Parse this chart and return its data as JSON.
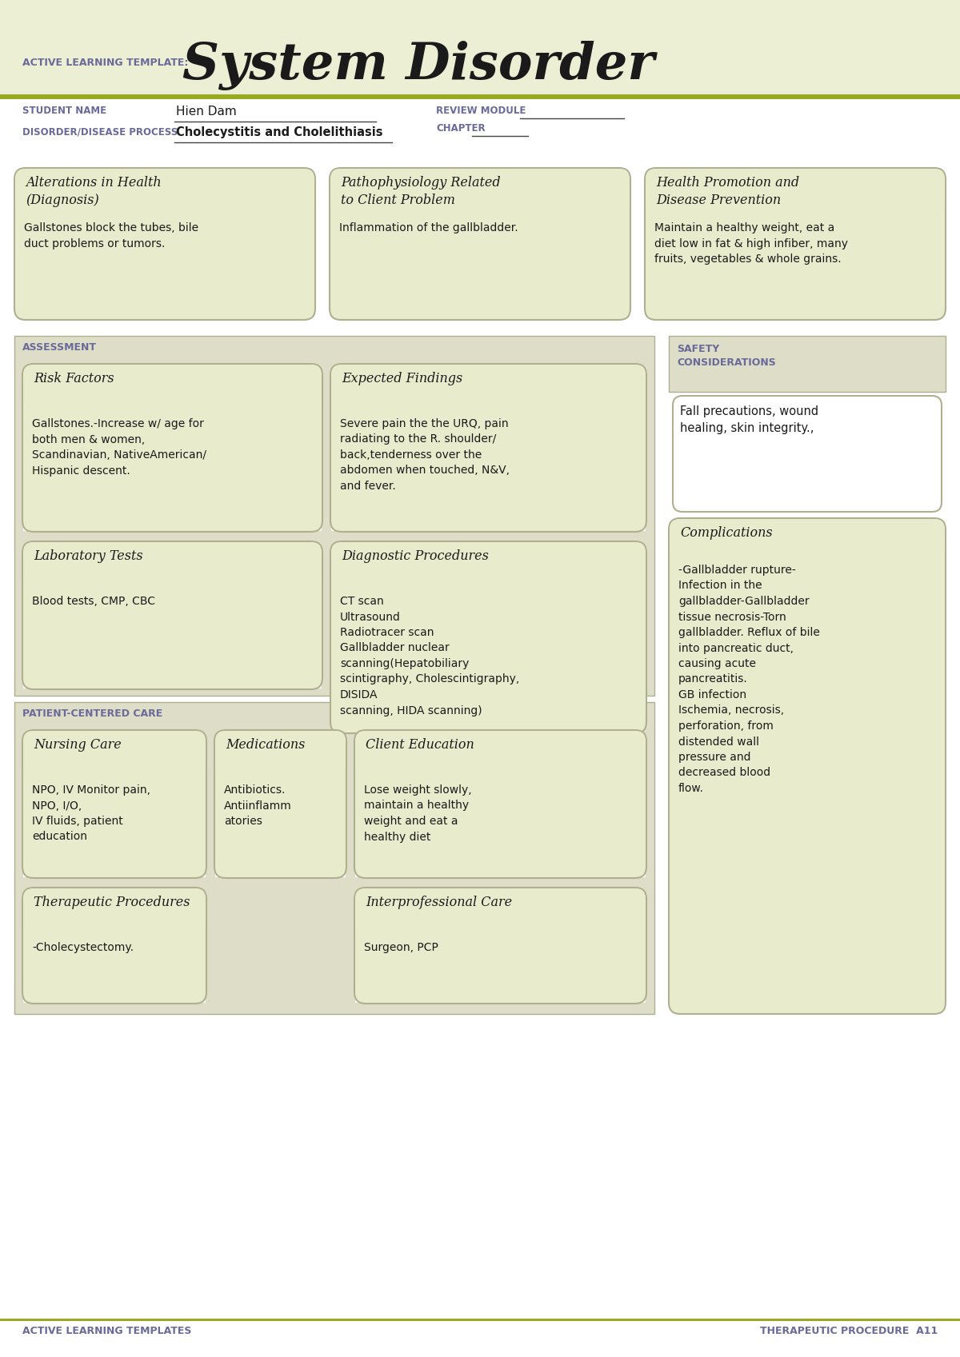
{
  "title": "System Disorder",
  "subtitle_label": "ACTIVE LEARNING TEMPLATE:",
  "header_bg": "#ecefd4",
  "white_bg": "#ffffff",
  "box_bg": "#e8eccc",
  "box_bg2": "#e4e8c4",
  "box_border": "#b0b090",
  "section_bg": "#ddddc8",
  "olive_line": "#9aaa20",
  "purple_text": "#6a6a9a",
  "dark_text": "#1a1a1a",
  "student_name": "Hien Dam",
  "disorder": "Cholecystitis and Cholelithiasis",
  "review_module": "REVIEW MODULE",
  "chapter": "CHAPTER",
  "footer_left": "ACTIVE LEARNING TEMPLATES",
  "footer_right": "THERAPEUTIC PROCEDURE  A11",
  "boxes": {
    "alterations_title": "Alterations in Health\n(Diagnosis)",
    "alterations_content": "Gallstones block the tubes, bile\nduct problems or tumors.",
    "pathophysiology_title": "Pathophysiology Related\nto Client Problem",
    "pathophysiology_content": "Inflammation of the gallbladder.",
    "health_promotion_title": "Health Promotion and\nDisease Prevention",
    "health_promotion_content": "Maintain a healthy weight, eat a\ndiet low in fat & high infiber, many\nfruits, vegetables & whole grains.",
    "assessment_label": "ASSESSMENT",
    "safety_label": "SAFETY\nCONSIDERATIONS",
    "safety_content": "Fall precautions, wound\nhealing, skin integrity.,",
    "risk_factors_title": "Risk Factors",
    "risk_factors_content": "Gallstones.-Increase w/ age for\nboth men & women,\nScandinavian, NativeAmerican/\nHispanic descent.",
    "expected_findings_title": "Expected Findings",
    "expected_findings_content": "Severe pain the the URQ, pain\nradiating to the R. shoulder/\nback,tenderness over the\nabdomen when touched, N&V,\nand fever.",
    "lab_tests_title": "Laboratory Tests",
    "lab_tests_content": "Blood tests, CMP, CBC",
    "diagnostic_title": "Diagnostic Procedures",
    "diagnostic_content": "CT scan\nUltrasound\nRadiotracer scan\nGallbladder nuclear\nscanning(Hepatobiliary\nscintigraphy, Cholescintigraphy,\nDISIDA\nscanning, HIDA scanning)",
    "patient_centered_label": "PATIENT-CENTERED CARE",
    "complications_title": "Complications",
    "complications_content": "-Gallbladder rupture-\nInfection in the\ngallbladder-Gallbladder\ntissue necrosis-Torn\ngallbladder. Reflux of bile\ninto pancreatic duct,\ncausing acute\npancreatitis.\nGB infection\nIschemia, necrosis,\nperforation, from\ndistended wall\npressure and\ndecreased blood\nflow.",
    "nursing_care_title": "Nursing Care",
    "nursing_care_content": "NPO, IV Monitor pain,\nNPO, I/O,\nIV fluids, patient\neducation",
    "medications_title": "Medications",
    "medications_content": "Antibiotics.\nAntiinflamm\natories",
    "client_education_title": "Client Education",
    "client_education_content": "Lose weight slowly,\nmaintain a healthy\nweight and eat a\nhealthy diet",
    "therapeutic_procedures_title": "Therapeutic Procedures",
    "therapeutic_procedures_content": "-Cholecystectomy.",
    "interprofessional_title": "Interprofessional Care",
    "interprofessional_content": "Surgeon, PCP"
  }
}
